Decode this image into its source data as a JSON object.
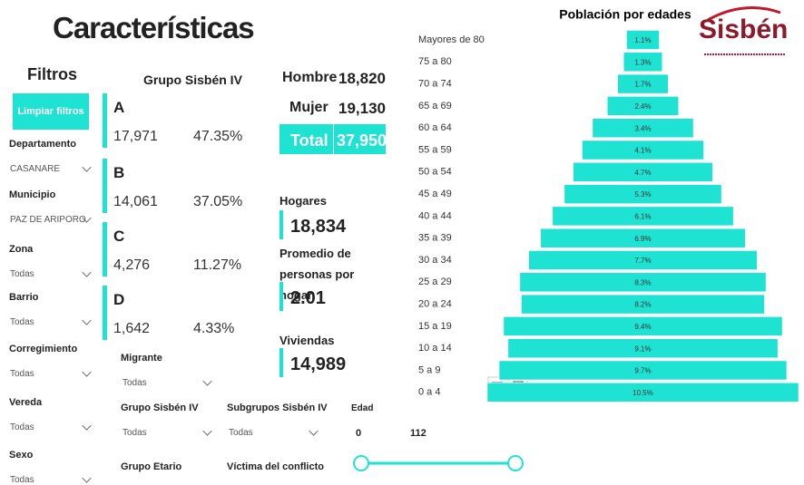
{
  "header": {
    "title": "Características"
  },
  "filters": {
    "title": "Filtros",
    "button": "Limpiar filtros",
    "fields": [
      {
        "label": "Departamento",
        "value": "CASANARE"
      },
      {
        "label": "Municipio",
        "value": "PAZ DE ARIPORO"
      },
      {
        "label": "Zona",
        "value": "Todas"
      },
      {
        "label": "Barrio",
        "value": "Todas"
      },
      {
        "label": "Corregimiento",
        "value": "Todas"
      },
      {
        "label": "Vereda",
        "value": "Todas"
      },
      {
        "label": "Sexo",
        "value": "Todas"
      }
    ]
  },
  "groups": {
    "title": "Grupo Sisbén IV",
    "items": [
      {
        "letter": "A",
        "count": "17,971",
        "percent": "47.35%"
      },
      {
        "letter": "B",
        "count": "14,061",
        "percent": "37.05%"
      },
      {
        "letter": "C",
        "count": "4,276",
        "percent": "11.27%"
      },
      {
        "letter": "D",
        "count": "1,642",
        "percent": "4.33%"
      }
    ]
  },
  "totals": {
    "rows": [
      {
        "label": "Hombre",
        "value": "18,820"
      },
      {
        "label": "Mujer",
        "value": "19,130"
      },
      {
        "label": "Total",
        "value": "37,950"
      }
    ]
  },
  "kpis": [
    {
      "label": "Hogares",
      "value": "18,834"
    },
    {
      "label": "Promedio de personas por hogar",
      "value": "2.01"
    },
    {
      "label": "Viviendas",
      "value": "14,989"
    }
  ],
  "bottom_filters": [
    {
      "label": "Migrante",
      "value": "Todas"
    },
    {
      "label": "Grupo Sisbén IV",
      "value": "Todas"
    },
    {
      "label": "Subgrupos Sisbén IV",
      "value": "Todas"
    },
    {
      "label": "Grupo Etario"
    },
    {
      "label": "Víctima del conflicto"
    }
  ],
  "age_slider": {
    "label": "Edad",
    "min": "0",
    "max": "112"
  },
  "logo": {
    "text": "Sisbén"
  },
  "chart_data": {
    "type": "bar",
    "title": "Población por edades",
    "color": "#1ee3d3",
    "categories": [
      "Mayores de 80",
      "75 a 80",
      "70 a 74",
      "65 a 69",
      "60 a 64",
      "55 a 59",
      "50 a 54",
      "45 a 49",
      "40 a 44",
      "35 a 39",
      "30 a 34",
      "25 a 29",
      "20 a 24",
      "15 a 19",
      "10 a 14",
      "5 a 9",
      "0 a 4"
    ],
    "values": [
      1.1,
      1.3,
      1.7,
      2.4,
      3.4,
      4.1,
      4.7,
      5.3,
      6.1,
      6.9,
      7.7,
      8.3,
      8.2,
      9.4,
      9.1,
      9.7,
      10.5
    ],
    "value_labels": [
      "1.1%",
      "1.3%",
      "1.7%",
      "2.4%",
      "3.4%",
      "4.1%",
      "4.7%",
      "5.3%",
      "6.1%",
      "6.9%",
      "7.7%",
      "8.3%",
      "8.2%",
      "9.4%",
      "9.1%",
      "9.7%",
      "10.5%"
    ]
  }
}
